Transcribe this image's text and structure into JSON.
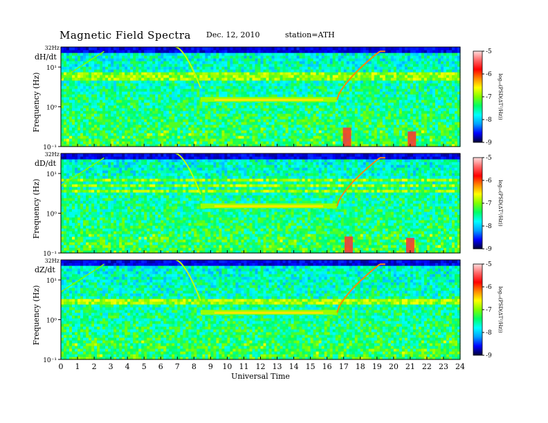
{
  "header": {
    "title": "Magnetic  Field  Spectra",
    "date": "Dec. 12, 2010",
    "station": "station=ATH"
  },
  "colors": {
    "colormap": [
      "#000033",
      "#0000ff",
      "#00a0ff",
      "#00ffff",
      "#00ff66",
      "#80ff00",
      "#ffff00",
      "#ff8800",
      "#ff0000",
      "#ff6666",
      "#ffdede"
    ]
  },
  "chart_data": [
    {
      "type": "heatmap",
      "title": "Magnetic  Field  Spectra",
      "component_label": "dH/dt",
      "xlabel": "",
      "ylabel": "Frequency  (Hz)",
      "x_ticks": [
        "0",
        "1",
        "2",
        "3",
        "4",
        "5",
        "6",
        "7",
        "8",
        "9",
        "10",
        "11",
        "12",
        "13",
        "14",
        "15",
        "16",
        "17",
        "18",
        "19",
        "20",
        "21",
        "22",
        "23",
        "24"
      ],
      "xlim": [
        0,
        24
      ],
      "y_scale": "log",
      "y_ticks": [
        "10⁻¹",
        "10⁰",
        "10¹"
      ],
      "y_top_label": "32Hz",
      "ylim": [
        0.1,
        32
      ],
      "colorbar": {
        "label": "log₁₀(PSD(ΔT²/Hz))",
        "ticks": [
          "-5",
          "-6",
          "-7",
          "-8",
          "-9"
        ],
        "range": [
          -9,
          -5
        ]
      },
      "features": {
        "lines_hz": [
          7.0,
          6.0,
          5.2
        ],
        "descending_line_hz_start": 32,
        "flat_band_hz": 1.5,
        "flat_band_time": [
          8.4,
          16.6
        ],
        "ascending_line_time": [
          16.6,
          19.5
        ],
        "bursts": [
          [
            17.2,
            0.15
          ],
          [
            21.1,
            0.12
          ]
        ]
      }
    },
    {
      "type": "heatmap",
      "component_label": "dD/dt",
      "xlabel": "",
      "ylabel": "Frequency  (Hz)",
      "x_ticks": [
        "0",
        "1",
        "2",
        "3",
        "4",
        "5",
        "6",
        "7",
        "8",
        "9",
        "10",
        "11",
        "12",
        "13",
        "14",
        "15",
        "16",
        "17",
        "18",
        "19",
        "20",
        "21",
        "22",
        "23",
        "24"
      ],
      "xlim": [
        0,
        24
      ],
      "y_scale": "log",
      "y_ticks": [
        "10⁻¹",
        "10⁰",
        "10¹"
      ],
      "y_top_label": "32Hz",
      "ylim": [
        0.1,
        32
      ],
      "colorbar": {
        "label": "log₁₀(PSD(ΔT²/Hz))",
        "ticks": [
          "-5",
          "-6",
          "-7",
          "-8",
          "-9"
        ],
        "range": [
          -9,
          -5
        ]
      },
      "features": {
        "lines_hz": [
          7.0,
          5.2,
          3.5
        ],
        "descending_line_hz_start": 32,
        "flat_band_hz": 1.5,
        "flat_band_time": [
          8.4,
          16.6
        ],
        "ascending_line_time": [
          16.6,
          19.5
        ],
        "bursts": [
          [
            17.3,
            0.13
          ],
          [
            21.0,
            0.12
          ]
        ]
      }
    },
    {
      "type": "heatmap",
      "component_label": "dZ/dt",
      "xlabel": "Universal  Time",
      "ylabel": "Frequency  (Hz)",
      "x_ticks": [
        "0",
        "1",
        "2",
        "3",
        "4",
        "5",
        "6",
        "7",
        "8",
        "9",
        "10",
        "11",
        "12",
        "13",
        "14",
        "15",
        "16",
        "17",
        "18",
        "19",
        "20",
        "21",
        "22",
        "23",
        "24"
      ],
      "xlim": [
        0,
        24
      ],
      "y_scale": "log",
      "y_ticks": [
        "10⁻¹",
        "10⁰",
        "10¹"
      ],
      "y_top_label": "32Hz",
      "ylim": [
        0.1,
        32
      ],
      "colorbar": {
        "label": "log₁₀(PSD(ΔT²/Hz))",
        "ticks": [
          "-5",
          "-6",
          "-7",
          "-8",
          "-9"
        ],
        "range": [
          -9,
          -5
        ]
      },
      "features": {
        "lines_hz": [
          3.3,
          3.0,
          2.8
        ],
        "descending_line_hz_start": 32,
        "flat_band_hz": 1.5,
        "flat_band_time": [
          8.4,
          16.6
        ],
        "ascending_line_time": [
          16.6,
          19.5
        ],
        "bursts": []
      }
    }
  ]
}
